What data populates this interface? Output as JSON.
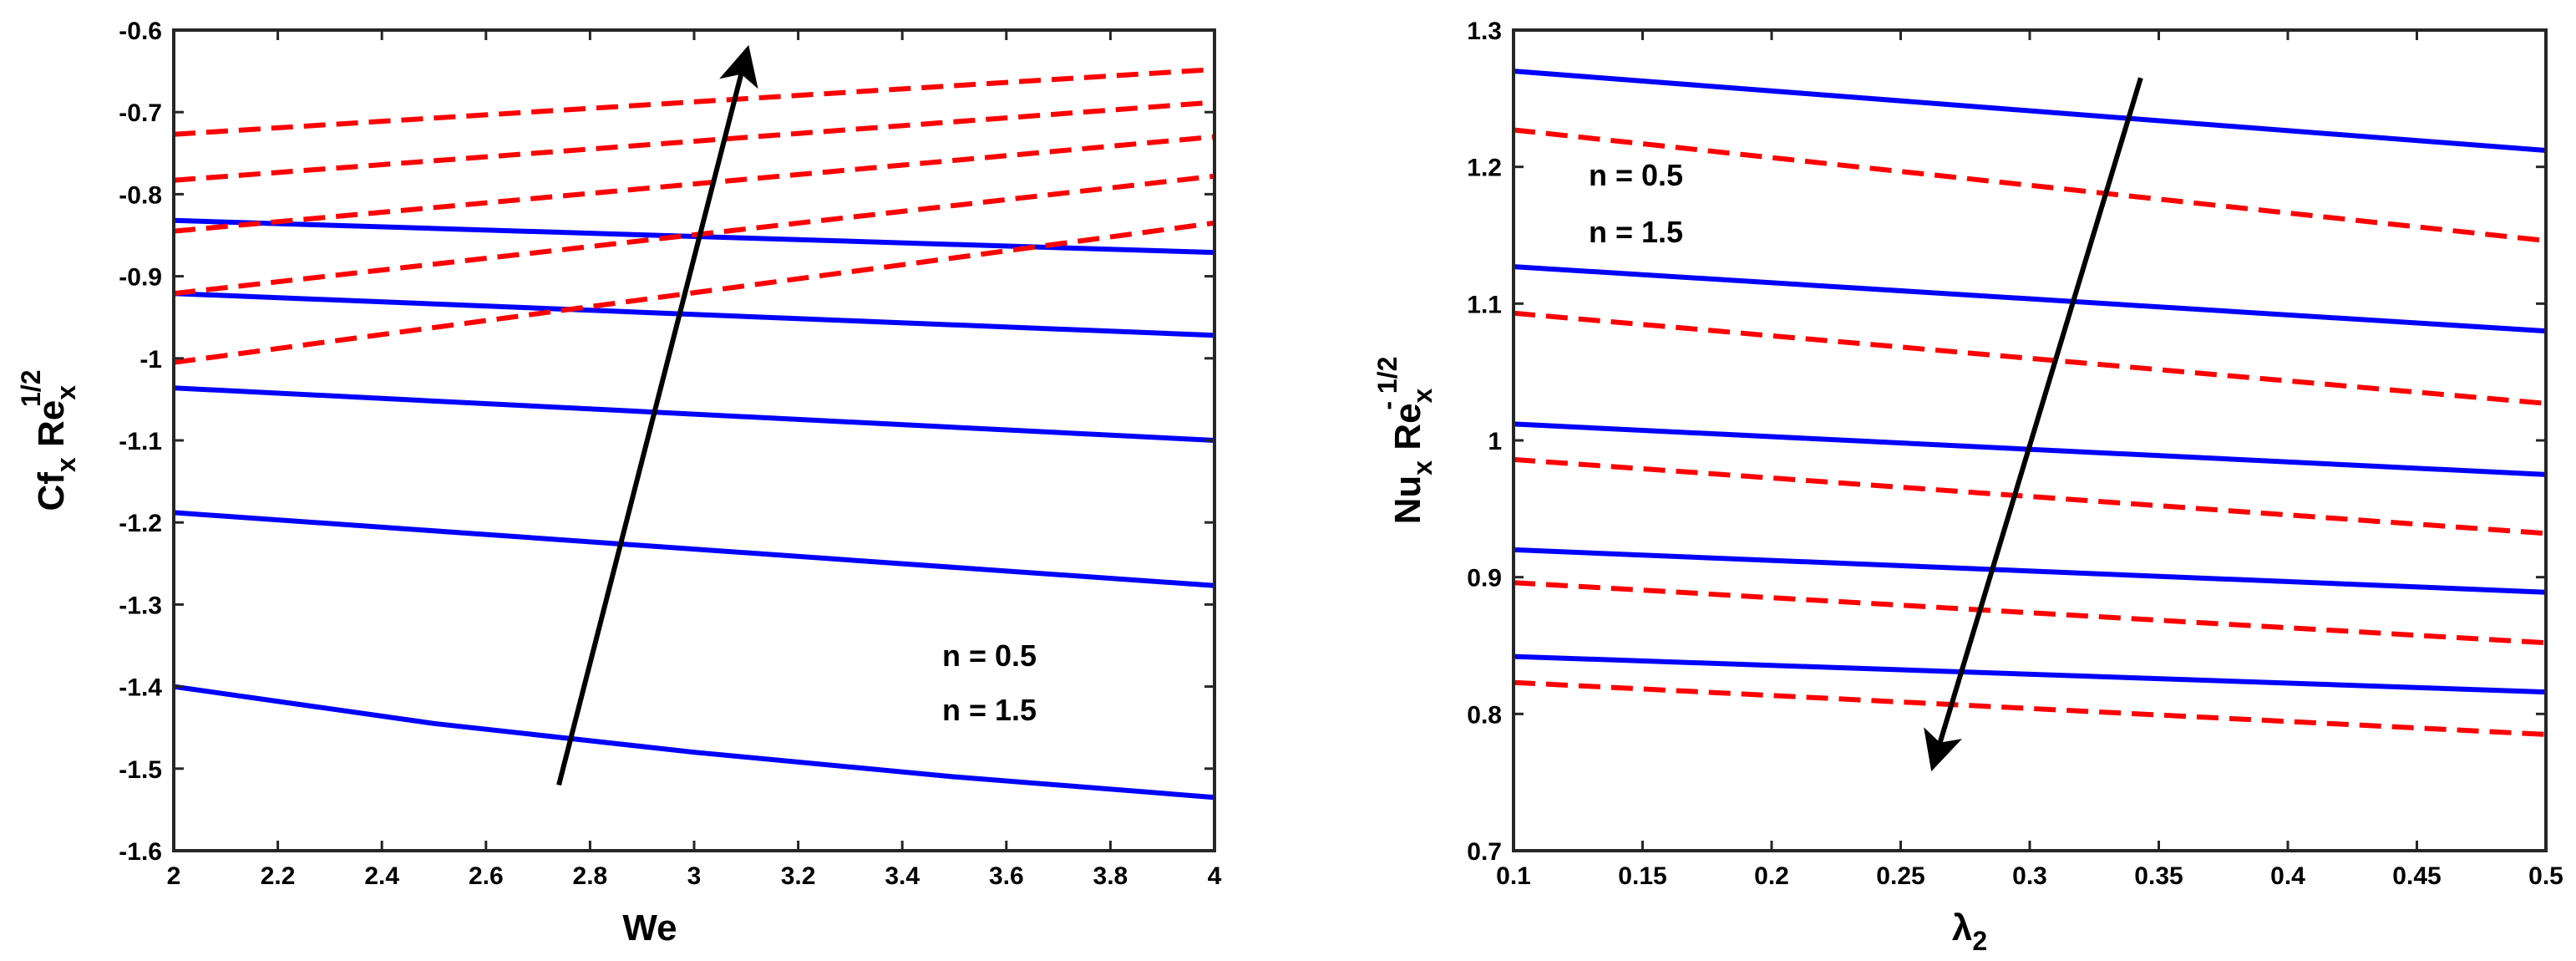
{
  "colors": {
    "series_a": "#0000ff",
    "series_b": "#ff0000",
    "arrow": "#000000"
  },
  "chart_data": [
    {
      "type": "line",
      "xlabel": "We",
      "ylabel": {
        "base": "Cf",
        "sub": "x",
        "mid": " Re",
        "sub2": "x",
        "sup": "1/2"
      },
      "xlim": [
        2,
        4
      ],
      "ylim": [
        -1.6,
        -0.6
      ],
      "xticks": [
        2,
        2.2,
        2.4,
        2.6,
        2.8,
        3,
        3.2,
        3.4,
        3.6,
        3.8,
        4
      ],
      "xticklabels": [
        "2",
        "2.2",
        "2.4",
        "2.6",
        "2.8",
        "3",
        "3.2",
        "3.4",
        "3.6",
        "3.8",
        "4"
      ],
      "yticks": [
        -1.6,
        -1.5,
        -1.4,
        -1.3,
        -1.2,
        -1.1,
        -1,
        -0.9,
        -0.8,
        -0.7,
        -0.6
      ],
      "yticklabels": [
        "-1.6",
        "-1.5",
        "-1.4",
        "-1.3",
        "-1.2",
        "-1.1",
        "-1",
        "-0.9",
        "-0.8",
        "-0.7",
        "-0.6"
      ],
      "legend_labels": [
        "n = 0.5",
        "n = 1.5"
      ],
      "legend_position": "lower-right",
      "arrow": {
        "from": [
          2.74,
          -1.52
        ],
        "to": [
          3.1,
          -0.63
        ],
        "direction": "up"
      },
      "series": [
        {
          "name": "n = 0.5",
          "style": "solid",
          "color": "#0000ff",
          "x": [
            2,
            2.5,
            3,
            3.5,
            4
          ],
          "y": [
            -1.4,
            -1.445,
            -1.48,
            -1.51,
            -1.535
          ]
        },
        {
          "name": "n = 0.5",
          "style": "solid",
          "color": "#0000ff",
          "x": [
            2,
            4
          ],
          "y": [
            -1.188,
            -1.277
          ]
        },
        {
          "name": "n = 0.5",
          "style": "solid",
          "color": "#0000ff",
          "x": [
            2,
            4
          ],
          "y": [
            -1.036,
            -1.1
          ]
        },
        {
          "name": "n = 0.5",
          "style": "solid",
          "color": "#0000ff",
          "x": [
            2,
            4
          ],
          "y": [
            -0.921,
            -0.972
          ]
        },
        {
          "name": "n = 0.5",
          "style": "solid",
          "color": "#0000ff",
          "x": [
            2,
            4
          ],
          "y": [
            -0.832,
            -0.871
          ]
        },
        {
          "name": "n = 1.5",
          "style": "dashed",
          "color": "#ff0000",
          "x": [
            2,
            4
          ],
          "y": [
            -1.005,
            -0.835
          ]
        },
        {
          "name": "n = 1.5",
          "style": "dashed",
          "color": "#ff0000",
          "x": [
            2,
            4
          ],
          "y": [
            -0.921,
            -0.778
          ]
        },
        {
          "name": "n = 1.5",
          "style": "dashed",
          "color": "#ff0000",
          "x": [
            2,
            4
          ],
          "y": [
            -0.845,
            -0.73
          ]
        },
        {
          "name": "n = 1.5",
          "style": "dashed",
          "color": "#ff0000",
          "x": [
            2,
            4
          ],
          "y": [
            -0.783,
            -0.688
          ]
        },
        {
          "name": "n = 1.5",
          "style": "dashed",
          "color": "#ff0000",
          "x": [
            2,
            4
          ],
          "y": [
            -0.727,
            -0.648
          ]
        }
      ]
    },
    {
      "type": "line",
      "xlabel": {
        "base": "λ",
        "sub": "2"
      },
      "ylabel": {
        "base": "Nu",
        "sub": "x",
        "mid": " Re",
        "sub2": "x",
        "sup": "- 1/2"
      },
      "xlim": [
        0.1,
        0.5
      ],
      "ylim": [
        0.7,
        1.3
      ],
      "xticks": [
        0.1,
        0.15,
        0.2,
        0.25,
        0.3,
        0.35,
        0.4,
        0.45,
        0.5
      ],
      "xticklabels": [
        "0.1",
        "0.15",
        "0.2",
        "0.25",
        "0.3",
        "0.35",
        "0.4",
        "0.45",
        "0.5"
      ],
      "yticks": [
        0.7,
        0.8,
        0.9,
        1,
        1.1,
        1.2,
        1.3
      ],
      "yticklabels": [
        "0.7",
        "0.8",
        "0.9",
        "1",
        "1.1",
        "1.2",
        "1.3"
      ],
      "legend_labels": [
        "n = 0.5",
        "n = 1.5"
      ],
      "legend_position": "top-left",
      "arrow": {
        "from": [
          0.343,
          1.265
        ],
        "to": [
          0.263,
          0.765
        ],
        "direction": "down"
      },
      "series": [
        {
          "name": "n = 0.5",
          "style": "solid",
          "color": "#0000ff",
          "x": [
            0.1,
            0.5
          ],
          "y": [
            1.27,
            1.212
          ]
        },
        {
          "name": "n = 0.5",
          "style": "solid",
          "color": "#0000ff",
          "x": [
            0.1,
            0.5
          ],
          "y": [
            1.127,
            1.08
          ]
        },
        {
          "name": "n = 0.5",
          "style": "solid",
          "color": "#0000ff",
          "x": [
            0.1,
            0.5
          ],
          "y": [
            1.012,
            0.975
          ]
        },
        {
          "name": "n = 0.5",
          "style": "solid",
          "color": "#0000ff",
          "x": [
            0.1,
            0.5
          ],
          "y": [
            0.92,
            0.889
          ]
        },
        {
          "name": "n = 0.5",
          "style": "solid",
          "color": "#0000ff",
          "x": [
            0.1,
            0.5
          ],
          "y": [
            0.842,
            0.816
          ]
        },
        {
          "name": "n = 1.5",
          "style": "dashed",
          "color": "#ff0000",
          "x": [
            0.1,
            0.5
          ],
          "y": [
            1.227,
            1.146
          ]
        },
        {
          "name": "n = 1.5",
          "style": "dashed",
          "color": "#ff0000",
          "x": [
            0.1,
            0.5
          ],
          "y": [
            1.093,
            1.027
          ]
        },
        {
          "name": "n = 1.5",
          "style": "dashed",
          "color": "#ff0000",
          "x": [
            0.1,
            0.5
          ],
          "y": [
            0.986,
            0.932
          ]
        },
        {
          "name": "n = 1.5",
          "style": "dashed",
          "color": "#ff0000",
          "x": [
            0.1,
            0.5
          ],
          "y": [
            0.896,
            0.852
          ]
        },
        {
          "name": "n = 1.5",
          "style": "dashed",
          "color": "#ff0000",
          "x": [
            0.1,
            0.5
          ],
          "y": [
            0.823,
            0.785
          ]
        }
      ]
    }
  ]
}
